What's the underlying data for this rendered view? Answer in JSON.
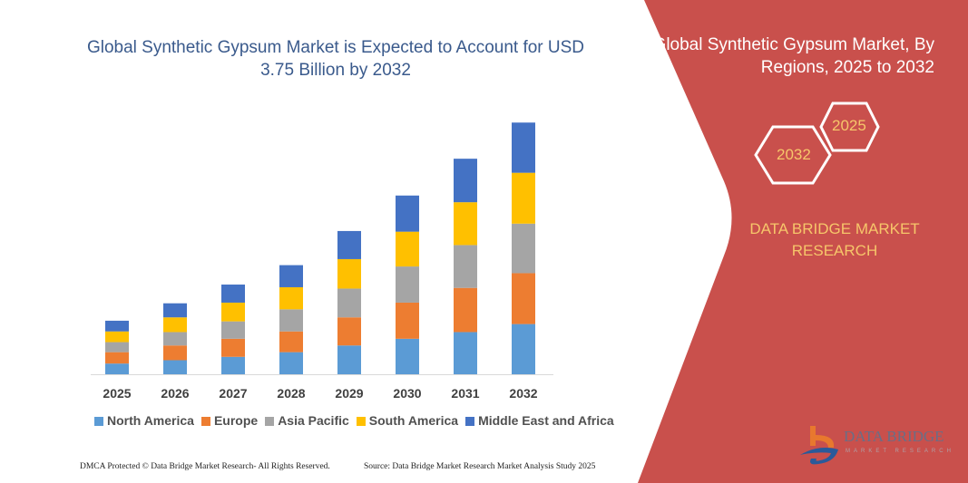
{
  "header": {
    "title": "Global Synthetic Gypsum Market is Expected to Account for USD 3.75 Billion by 2032",
    "right_title": "Global Synthetic Gypsum Market, By Regions, 2025 to 2032",
    "hex_start": "2025",
    "hex_end": "2032",
    "brand": "DATA BRIDGE MARKET RESEARCH",
    "logo_text": "DATA BRIDGE",
    "logo_subtext": "MARKET RESEARCH"
  },
  "footer": {
    "left": "DMCA Protected © Data Bridge Market Research-  All Rights Reserved.",
    "right": "Source: Data Bridge Market Research  Market Analysis Study 2025"
  },
  "colors": {
    "panel": "#c9504c",
    "accent_text": "#f6c66a",
    "title": "#3a5a8c"
  },
  "chart_data": {
    "type": "bar",
    "stacked": true,
    "title": "Global Synthetic Gypsum Market is Expected to Account for USD 3.75 Billion by 2032",
    "xlabel": "",
    "ylabel": "",
    "ylim": [
      0,
      3.75
    ],
    "grid": false,
    "legend_position": "bottom",
    "categories": [
      "2025",
      "2026",
      "2027",
      "2028",
      "2029",
      "2030",
      "2031",
      "2032"
    ],
    "series": [
      {
        "name": "North America",
        "color": "#5b9bd5",
        "values": [
          0.16,
          0.21,
          0.26,
          0.33,
          0.43,
          0.53,
          0.63,
          0.75
        ]
      },
      {
        "name": "Europe",
        "color": "#ed7d31",
        "values": [
          0.17,
          0.22,
          0.27,
          0.31,
          0.42,
          0.54,
          0.66,
          0.76
        ]
      },
      {
        "name": "Asia Pacific",
        "color": "#a5a5a5",
        "values": [
          0.15,
          0.2,
          0.26,
          0.33,
          0.43,
          0.54,
          0.64,
          0.74
        ]
      },
      {
        "name": "South America",
        "color": "#ffc000",
        "values": [
          0.16,
          0.22,
          0.28,
          0.33,
          0.44,
          0.52,
          0.64,
          0.76
        ]
      },
      {
        "name": "Middle East and Africa",
        "color": "#4472c4",
        "values": [
          0.16,
          0.21,
          0.27,
          0.33,
          0.42,
          0.54,
          0.65,
          0.75
        ]
      }
    ]
  }
}
